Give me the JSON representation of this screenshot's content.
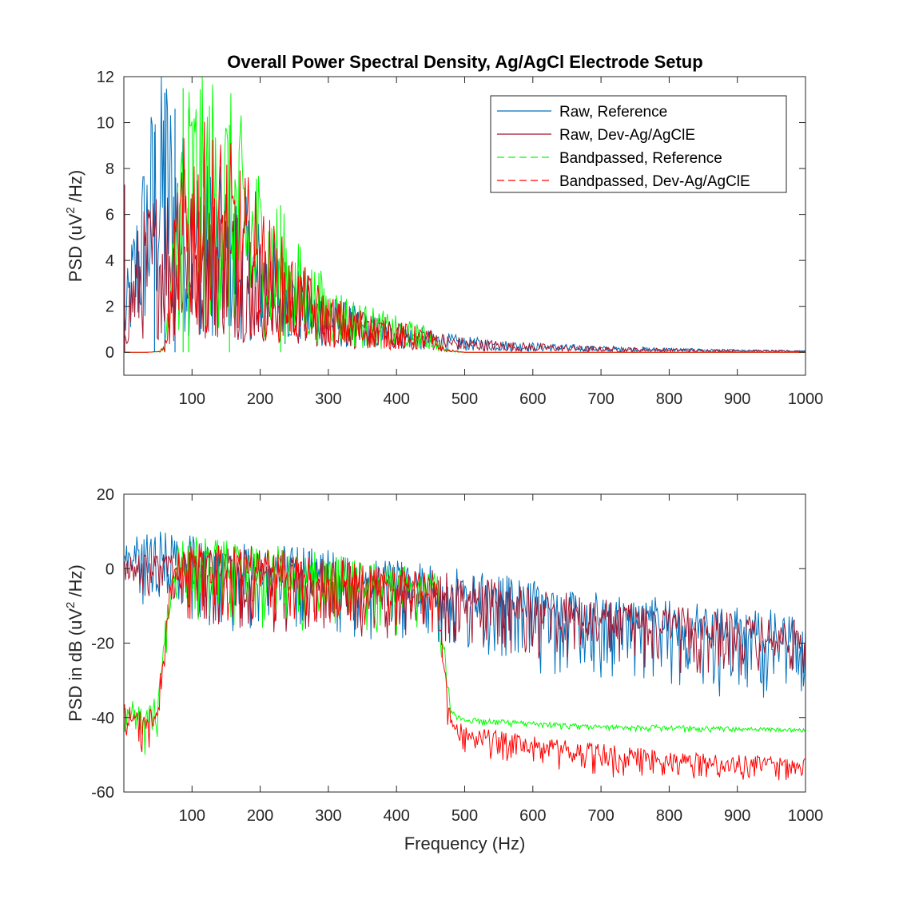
{
  "figure": {
    "title": "Overall Power Spectral Density, Ag/AgCl Electrode Setup"
  },
  "chart_data": [
    {
      "type": "line",
      "title": "Overall Power Spectral Density, Ag/AgCl Electrode Setup",
      "xlabel": "",
      "ylabel_main": "PSD (uV",
      "ylabel_sup": "2",
      "ylabel_tail": " /Hz)",
      "xlim": [
        0,
        1000
      ],
      "ylim": [
        -1,
        12
      ],
      "xticks": [
        100,
        200,
        300,
        400,
        500,
        600,
        700,
        800,
        900,
        1000
      ],
      "xtick_labels": [
        "100",
        "200",
        "300",
        "400",
        "500",
        "600",
        "700",
        "800",
        "900",
        "1000"
      ],
      "yticks": [
        0,
        2,
        4,
        6,
        8,
        10,
        12
      ],
      "ytick_labels": [
        "0",
        "2",
        "4",
        "6",
        "8",
        "10",
        "12"
      ],
      "grid": false,
      "legend_position": "top-right",
      "series": [
        {
          "name": "Raw, Reference",
          "color": "#0072BD",
          "style": "solid",
          "points": [
            [
              1,
              1.2
            ],
            [
              10,
              2.5
            ],
            [
              20,
              3.6
            ],
            [
              30,
              4.6
            ],
            [
              40,
              5.6
            ],
            [
              50,
              6.4
            ],
            [
              60,
              6.8
            ],
            [
              70,
              6.0
            ],
            [
              80,
              5.2
            ],
            [
              100,
              4.5
            ],
            [
              150,
              4.0
            ],
            [
              200,
              3.0
            ],
            [
              250,
              2.0
            ],
            [
              300,
              1.3
            ],
            [
              350,
              0.95
            ],
            [
              400,
              0.7
            ],
            [
              450,
              0.5
            ],
            [
              500,
              0.35
            ],
            [
              600,
              0.22
            ],
            [
              700,
              0.14
            ],
            [
              800,
              0.1
            ],
            [
              900,
              0.06
            ],
            [
              1000,
              0.04
            ]
          ],
          "peaks": [
            [
              60,
              11.3
            ],
            [
              75,
              10.6
            ],
            [
              45,
              9.6
            ]
          ]
        },
        {
          "name": "Raw, Dev-Ag/AgClE",
          "color": "#A2142F",
          "style": "solid",
          "points": [
            [
              1,
              1.0
            ],
            [
              10,
              2.0
            ],
            [
              20,
              2.8
            ],
            [
              30,
              3.2
            ],
            [
              40,
              3.6
            ],
            [
              50,
              3.8
            ],
            [
              60,
              4.0
            ],
            [
              70,
              4.0
            ],
            [
              80,
              3.9
            ],
            [
              100,
              3.8
            ],
            [
              150,
              3.4
            ],
            [
              200,
              2.6
            ],
            [
              250,
              1.8
            ],
            [
              300,
              1.2
            ],
            [
              350,
              0.9
            ],
            [
              400,
              0.65
            ],
            [
              450,
              0.48
            ],
            [
              500,
              0.33
            ],
            [
              600,
              0.2
            ],
            [
              700,
              0.13
            ],
            [
              800,
              0.09
            ],
            [
              900,
              0.06
            ],
            [
              1000,
              0.04
            ]
          ],
          "peaks": [
            [
              1,
              7.3
            ]
          ]
        },
        {
          "name": "Bandpassed, Reference",
          "color": "#00FF00",
          "style": "dashed",
          "points": [
            [
              1,
              0.0
            ],
            [
              30,
              0.0
            ],
            [
              50,
              0.02
            ],
            [
              60,
              0.2
            ],
            [
              70,
              2.2
            ],
            [
              80,
              5.5
            ],
            [
              100,
              6.5
            ],
            [
              150,
              6.0
            ],
            [
              200,
              4.2
            ],
            [
              250,
              2.6
            ],
            [
              300,
              1.6
            ],
            [
              350,
              1.1
            ],
            [
              400,
              0.8
            ],
            [
              450,
              0.55
            ],
            [
              470,
              0.1
            ],
            [
              500,
              0.0
            ],
            [
              600,
              0.0
            ],
            [
              700,
              0.0
            ],
            [
              800,
              0.0
            ],
            [
              900,
              0.0
            ],
            [
              1000,
              0.0
            ]
          ],
          "peaks": [
            [
              87,
              11.5
            ],
            [
              95,
              10.6
            ],
            [
              155,
              9.9
            ],
            [
              230,
              6.4
            ]
          ]
        },
        {
          "name": "Bandpassed, Dev-Ag/AgClE",
          "color": "#FF0000",
          "style": "dashed",
          "points": [
            [
              1,
              0.0
            ],
            [
              30,
              0.0
            ],
            [
              50,
              0.02
            ],
            [
              60,
              0.15
            ],
            [
              70,
              1.8
            ],
            [
              80,
              4.4
            ],
            [
              100,
              5.2
            ],
            [
              150,
              4.8
            ],
            [
              200,
              3.4
            ],
            [
              250,
              2.1
            ],
            [
              300,
              1.3
            ],
            [
              350,
              0.95
            ],
            [
              400,
              0.7
            ],
            [
              450,
              0.5
            ],
            [
              470,
              0.08
            ],
            [
              500,
              0.0
            ],
            [
              600,
              0.0
            ],
            [
              700,
              0.0
            ],
            [
              800,
              0.0
            ],
            [
              900,
              0.0
            ],
            [
              1000,
              0.0
            ]
          ],
          "peaks": []
        }
      ]
    },
    {
      "type": "line",
      "title": "",
      "xlabel": "Frequency (Hz)",
      "ylabel_main": "PSD in dB (uV",
      "ylabel_sup": "2",
      "ylabel_tail": " /Hz)",
      "xlim": [
        0,
        1000
      ],
      "ylim": [
        -60,
        20
      ],
      "xticks": [
        100,
        200,
        300,
        400,
        500,
        600,
        700,
        800,
        900,
        1000
      ],
      "xtick_labels": [
        "100",
        "200",
        "300",
        "400",
        "500",
        "600",
        "700",
        "800",
        "900",
        "1000"
      ],
      "yticks": [
        -60,
        -40,
        -20,
        0,
        20
      ],
      "ytick_labels": [
        "-60",
        "-40",
        "-20",
        "0",
        "20"
      ],
      "grid": false,
      "series": [
        {
          "name": "Raw, Reference",
          "color": "#0072BD",
          "style": "solid",
          "upper": [
            [
              1,
              8
            ],
            [
              20,
              9
            ],
            [
              40,
              10
            ],
            [
              60,
              10
            ],
            [
              80,
              9
            ],
            [
              100,
              9
            ],
            [
              200,
              7
            ],
            [
              300,
              5
            ],
            [
              400,
              3
            ],
            [
              450,
              1
            ],
            [
              500,
              0
            ],
            [
              600,
              -3
            ],
            [
              700,
              -6
            ],
            [
              800,
              -8
            ],
            [
              900,
              -10
            ],
            [
              1000,
              -12
            ]
          ],
          "lower": [
            [
              1,
              -8
            ],
            [
              20,
              -12
            ],
            [
              40,
              -10
            ],
            [
              60,
              -8
            ],
            [
              80,
              -10
            ],
            [
              100,
              -15
            ],
            [
              200,
              -18
            ],
            [
              300,
              -18
            ],
            [
              400,
              -20
            ],
            [
              450,
              -20
            ],
            [
              500,
              -25
            ],
            [
              600,
              -28
            ],
            [
              700,
              -31
            ],
            [
              800,
              -33
            ],
            [
              900,
              -35
            ],
            [
              1000,
              -35
            ]
          ]
        },
        {
          "name": "Raw, Dev-Ag/AgClE",
          "color": "#A2142F",
          "style": "solid",
          "upper": [
            [
              1,
              3
            ],
            [
              20,
              4
            ],
            [
              40,
              4
            ],
            [
              60,
              5
            ],
            [
              80,
              6
            ],
            [
              100,
              6
            ],
            [
              200,
              5
            ],
            [
              300,
              3
            ],
            [
              400,
              1
            ],
            [
              450,
              0
            ],
            [
              500,
              -1
            ],
            [
              600,
              -5
            ],
            [
              700,
              -8
            ],
            [
              800,
              -10
            ],
            [
              900,
              -12
            ],
            [
              1000,
              -14
            ]
          ],
          "lower": [
            [
              1,
              -8
            ],
            [
              20,
              -10
            ],
            [
              40,
              -8
            ],
            [
              60,
              -7
            ],
            [
              80,
              -10
            ],
            [
              100,
              -14
            ],
            [
              200,
              -17
            ],
            [
              300,
              -18
            ],
            [
              400,
              -19
            ],
            [
              450,
              -19
            ],
            [
              500,
              -22
            ],
            [
              600,
              -25
            ],
            [
              700,
              -27
            ],
            [
              800,
              -28
            ],
            [
              900,
              -29
            ],
            [
              1000,
              -30
            ]
          ]
        },
        {
          "name": "Bandpassed, Reference",
          "color": "#00FF00",
          "style": "dashed",
          "upper": [
            [
              1,
              -33
            ],
            [
              20,
              -37
            ],
            [
              40,
              -36
            ],
            [
              50,
              -33
            ],
            [
              60,
              -15
            ],
            [
              70,
              2
            ],
            [
              80,
              7
            ],
            [
              100,
              9
            ],
            [
              200,
              7
            ],
            [
              300,
              4
            ],
            [
              400,
              1
            ],
            [
              450,
              0
            ],
            [
              460,
              -2
            ],
            [
              470,
              -20
            ],
            [
              480,
              -38
            ],
            [
              500,
              -40
            ],
            [
              600,
              -41
            ],
            [
              700,
              -42
            ],
            [
              800,
              -42
            ],
            [
              900,
              -42.5
            ],
            [
              1000,
              -43
            ]
          ],
          "lower": [
            [
              1,
              -45
            ],
            [
              20,
              -52
            ],
            [
              40,
              -50
            ],
            [
              50,
              -46
            ],
            [
              60,
              -28
            ],
            [
              70,
              -10
            ],
            [
              80,
              -12
            ],
            [
              100,
              -14
            ],
            [
              200,
              -16
            ],
            [
              300,
              -17
            ],
            [
              400,
              -18
            ],
            [
              450,
              -18
            ],
            [
              460,
              -20
            ],
            [
              470,
              -35
            ],
            [
              480,
              -40
            ],
            [
              500,
              -42
            ],
            [
              600,
              -43
            ],
            [
              700,
              -43.5
            ],
            [
              800,
              -44
            ],
            [
              900,
              -44
            ],
            [
              1000,
              -44
            ]
          ]
        },
        {
          "name": "Bandpassed, Dev-Ag/AgClE",
          "color": "#FF0000",
          "style": "dashed",
          "upper": [
            [
              1,
              -36
            ],
            [
              20,
              -38
            ],
            [
              40,
              -37
            ],
            [
              50,
              -34
            ],
            [
              60,
              -16
            ],
            [
              70,
              1
            ],
            [
              80,
              6
            ],
            [
              100,
              7
            ],
            [
              200,
              6
            ],
            [
              300,
              3
            ],
            [
              400,
              0
            ],
            [
              450,
              -1
            ],
            [
              460,
              -3
            ],
            [
              470,
              -22
            ],
            [
              480,
              -40
            ],
            [
              500,
              -42
            ],
            [
              600,
              -45
            ],
            [
              700,
              -47
            ],
            [
              800,
              -49
            ],
            [
              900,
              -50
            ],
            [
              1000,
              -51
            ]
          ],
          "lower": [
            [
              1,
              -45
            ],
            [
              20,
              -52
            ],
            [
              40,
              -50
            ],
            [
              50,
              -45
            ],
            [
              60,
              -28
            ],
            [
              70,
              -10
            ],
            [
              80,
              -12
            ],
            [
              100,
              -14
            ],
            [
              200,
              -15
            ],
            [
              300,
              -16
            ],
            [
              400,
              -17
            ],
            [
              450,
              -17
            ],
            [
              460,
              -20
            ],
            [
              470,
              -38
            ],
            [
              480,
              -46
            ],
            [
              500,
              -50
            ],
            [
              600,
              -53
            ],
            [
              700,
              -56
            ],
            [
              800,
              -57
            ],
            [
              900,
              -57
            ],
            [
              1000,
              -57
            ]
          ]
        }
      ]
    }
  ]
}
